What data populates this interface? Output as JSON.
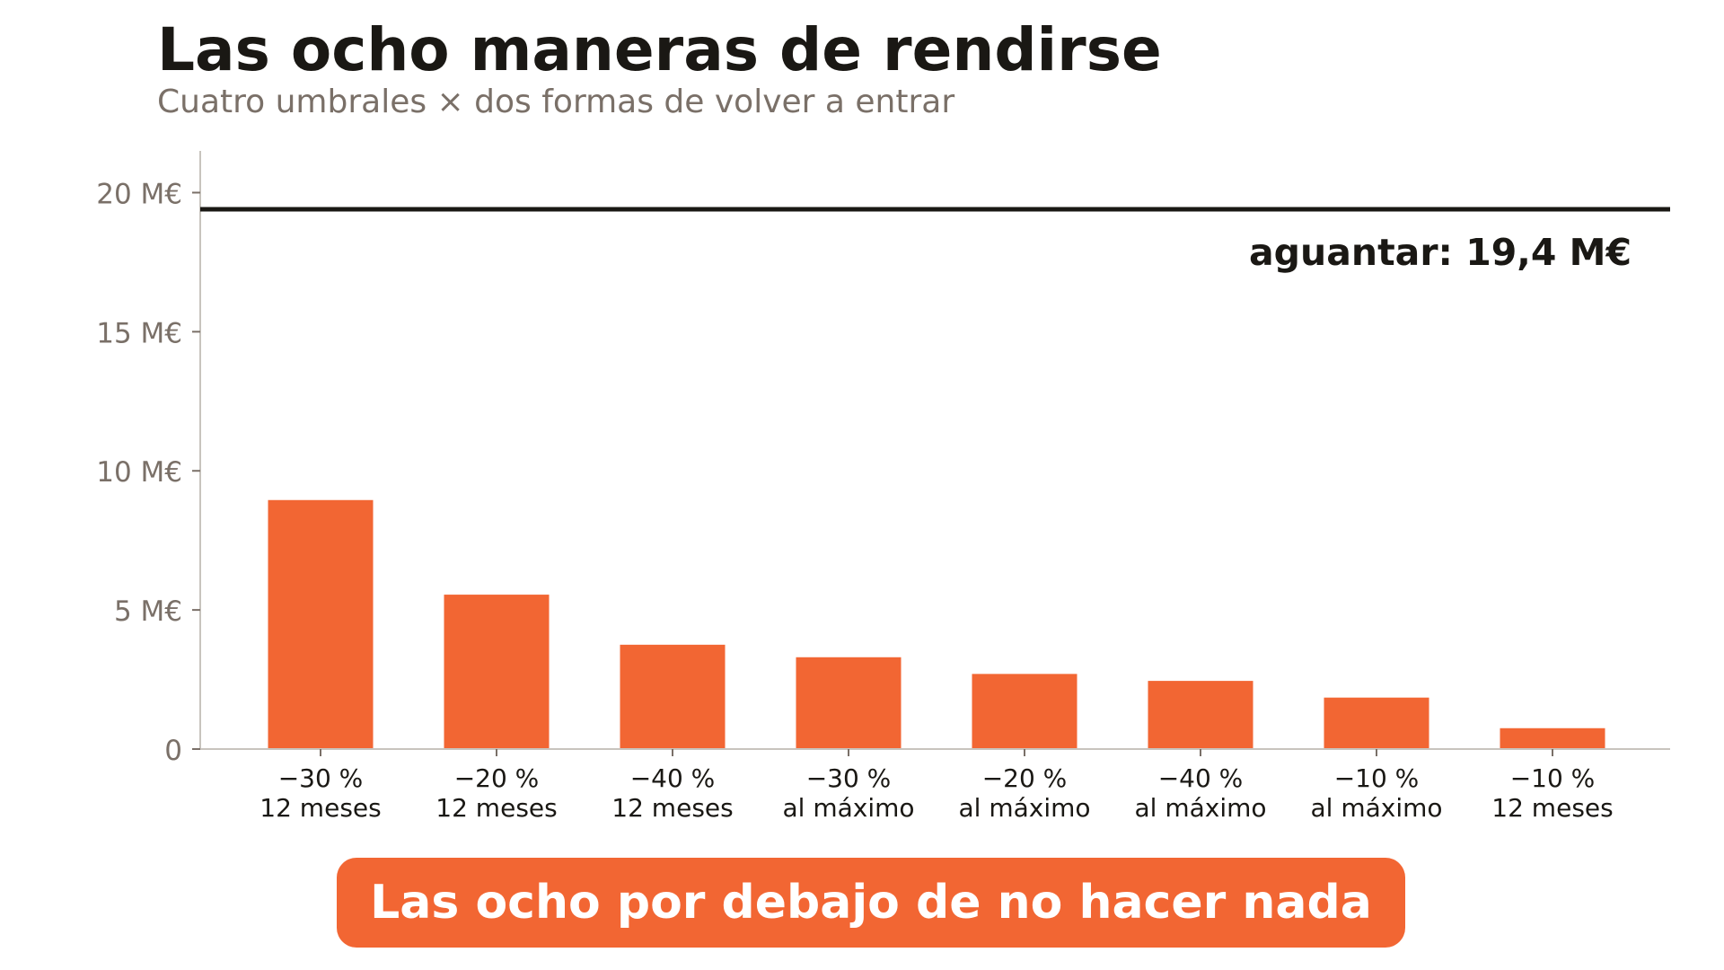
{
  "colors": {
    "bar": "#f26633",
    "text_dark": "#1a1814",
    "text_muted": "#7a7068",
    "axis": "#c8c4be",
    "callout_bg": "#f26633",
    "callout_text": "#ffffff"
  },
  "callout": {
    "text": "Las ocho por debajo de no hacer nada"
  },
  "chart_data": {
    "type": "bar",
    "title": "Las ocho maneras de rendirse",
    "subtitle": "Cuatro umbrales × dos formas de volver a entrar",
    "xlabel": "",
    "ylabel": "",
    "ylim": [
      0,
      21.5
    ],
    "yticks": [
      0,
      5,
      10,
      15,
      20
    ],
    "ytick_labels": [
      "0",
      "5 M€",
      "10 M€",
      "15 M€",
      "20 M€"
    ],
    "grid": false,
    "legend": "none",
    "categories": [
      [
        "−30 %",
        "12 meses"
      ],
      [
        "−20 %",
        "12 meses"
      ],
      [
        "−40 %",
        "12 meses"
      ],
      [
        "−30 %",
        "al máximo"
      ],
      [
        "−20 %",
        "al máximo"
      ],
      [
        "−40 %",
        "al máximo"
      ],
      [
        "−10 %",
        "al máximo"
      ],
      [
        "−10 %",
        "12 meses"
      ]
    ],
    "values": [
      8.95,
      5.55,
      3.75,
      3.3,
      2.7,
      2.45,
      1.85,
      0.75
    ],
    "reference_line": {
      "value": 19.4,
      "label": "aguantar: 19,4 M€"
    }
  }
}
